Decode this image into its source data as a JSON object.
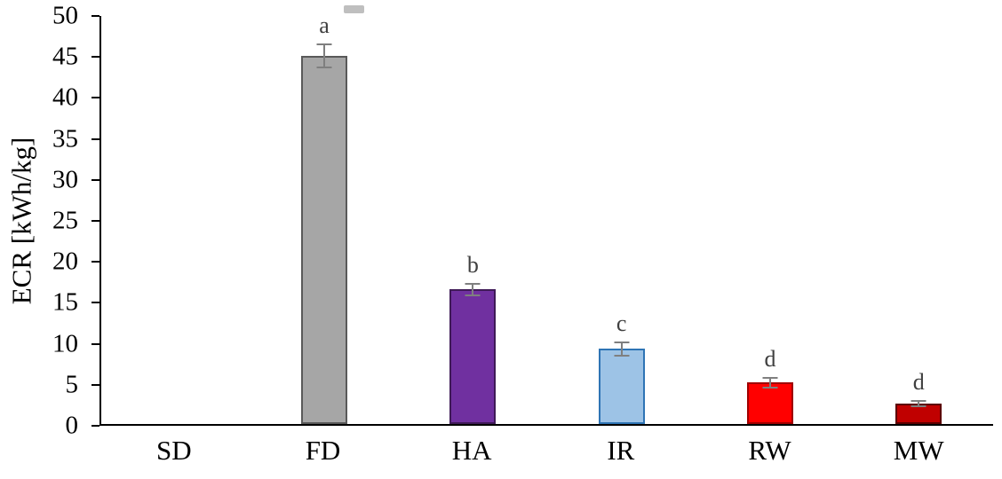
{
  "chart_data": {
    "type": "bar",
    "title": "",
    "xlabel": "",
    "ylabel": "ECR [kWh/kg]",
    "categories": [
      "SD",
      "FD",
      "HA",
      "IR",
      "RW",
      "MW"
    ],
    "values": [
      0,
      45.1,
      16.5,
      9.2,
      5.1,
      2.5
    ],
    "errors": [
      0,
      1.4,
      0.7,
      0.8,
      0.6,
      0.3
    ],
    "bar_labels": [
      "",
      "a",
      "b",
      "c",
      "d",
      "d"
    ],
    "bar_fill_colors": [
      "#a6a6a6",
      "#a6a6a6",
      "#7030a0",
      "#9dc3e6",
      "#ff0000",
      "#c00000"
    ],
    "bar_border_colors": [
      "#595959",
      "#595959",
      "#3f1a57",
      "#2e74b5",
      "#a00000",
      "#5c0000"
    ],
    "error_bar_color": "#7f7f7f",
    "letter_color": "#404040",
    "ylim": [
      0,
      50
    ],
    "yticks": [
      0,
      5,
      10,
      15,
      20,
      25,
      30,
      35,
      40,
      45,
      50
    ],
    "grid": false,
    "legend": "none"
  }
}
